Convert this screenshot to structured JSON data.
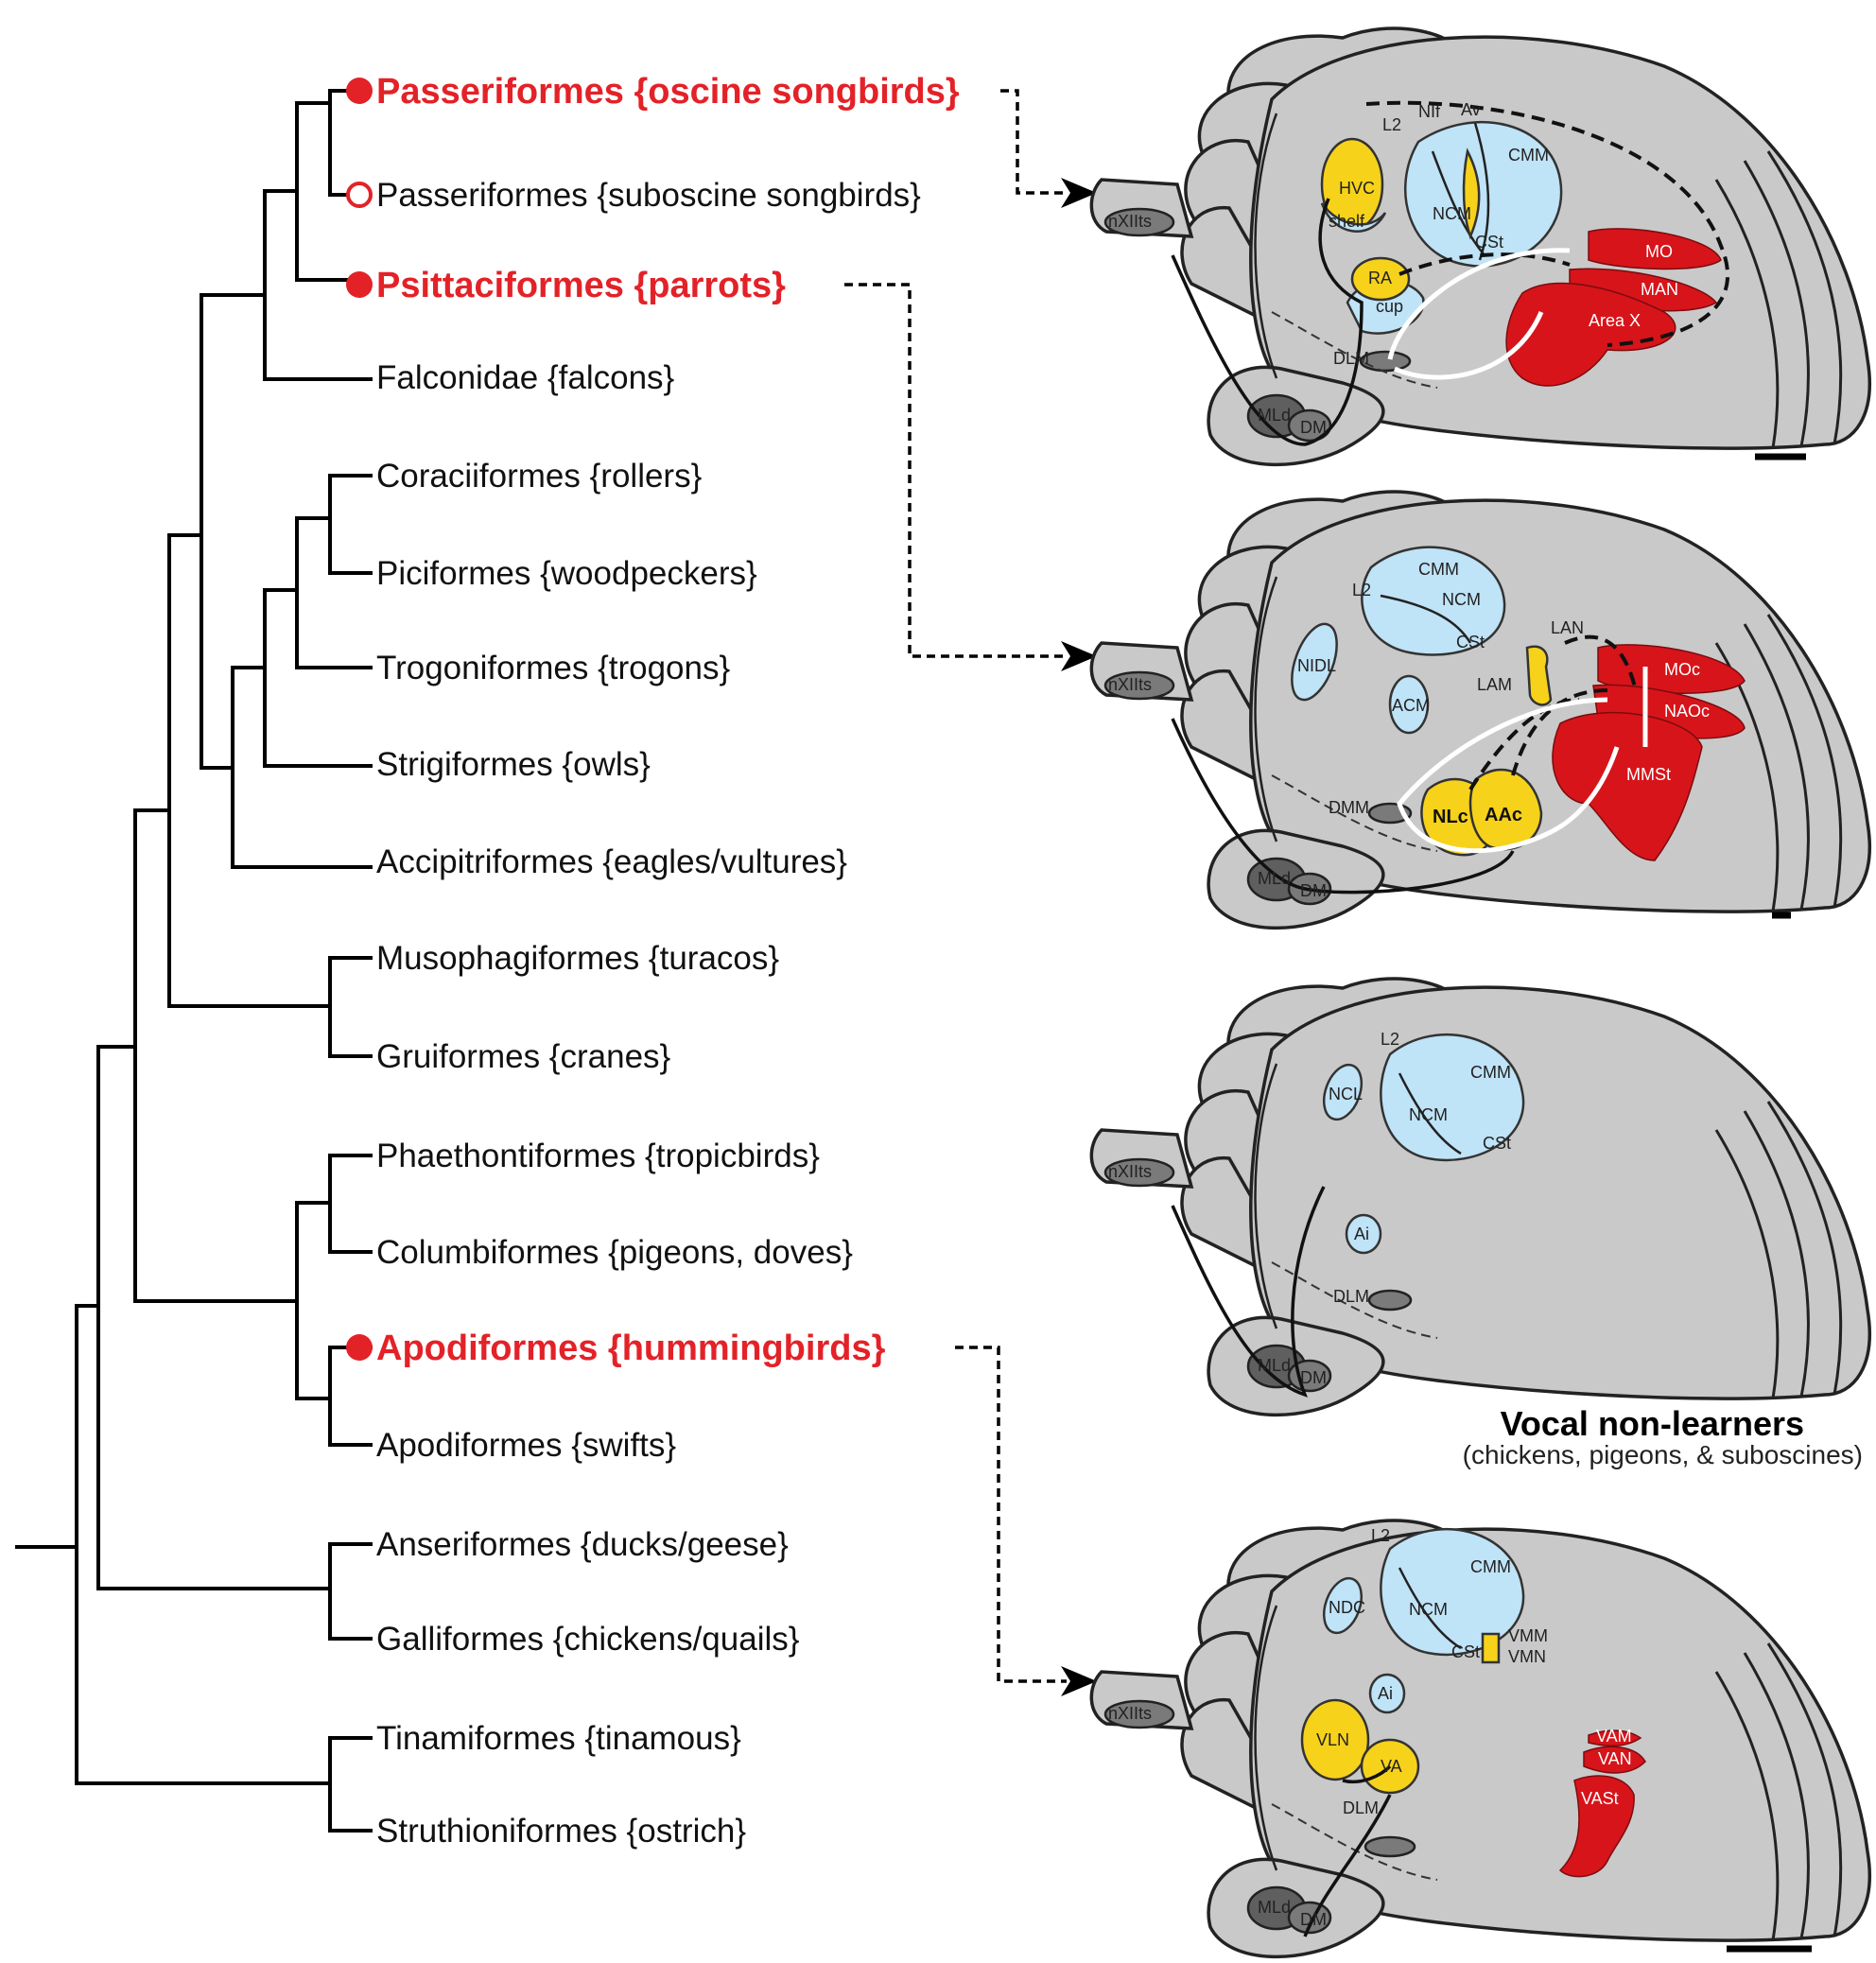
{
  "taxa": [
    {
      "label": "Passeriformes {oscine songbirds}",
      "vocal_learner": true,
      "marker": "filled"
    },
    {
      "label": "Passeriformes {suboscine songbirds}",
      "vocal_learner": false,
      "marker": "open"
    },
    {
      "label": "Psittaciformes {parrots}",
      "vocal_learner": true,
      "marker": "filled"
    },
    {
      "label": "Falconidae {falcons}",
      "vocal_learner": false,
      "marker": "none"
    },
    {
      "label": "Coraciiformes {rollers}",
      "vocal_learner": false,
      "marker": "none"
    },
    {
      "label": "Piciformes {woodpeckers}",
      "vocal_learner": false,
      "marker": "none"
    },
    {
      "label": "Trogoniformes {trogons}",
      "vocal_learner": false,
      "marker": "none"
    },
    {
      "label": "Strigiformes {owls}",
      "vocal_learner": false,
      "marker": "none"
    },
    {
      "label": "Accipitriformes {eagles/vultures}",
      "vocal_learner": false,
      "marker": "none"
    },
    {
      "label": "Musophagiformes {turacos}",
      "vocal_learner": false,
      "marker": "none"
    },
    {
      "label": "Gruiformes {cranes}",
      "vocal_learner": false,
      "marker": "none"
    },
    {
      "label": "Phaethontiformes {tropicbirds}",
      "vocal_learner": false,
      "marker": "none"
    },
    {
      "label": "Columbiformes {pigeons, doves}",
      "vocal_learner": false,
      "marker": "none"
    },
    {
      "label": "Apodiformes {hummingbirds}",
      "vocal_learner": true,
      "marker": "filled"
    },
    {
      "label": "Apodiformes {swifts}",
      "vocal_learner": false,
      "marker": "none"
    },
    {
      "label": "Anseriformes {ducks/geese}",
      "vocal_learner": false,
      "marker": "none"
    },
    {
      "label": "Galliformes {chickens/quails}",
      "vocal_learner": false,
      "marker": "none"
    },
    {
      "label": "Tinamiformes {tinamous}",
      "vocal_learner": false,
      "marker": "none"
    },
    {
      "label": "Struthioniformes {ostrich}",
      "vocal_learner": false,
      "marker": "none"
    }
  ],
  "colors": {
    "learner": "#e32228",
    "brain": "#c9c9c9",
    "auditory": "#bfe3f7",
    "posterior_vocal": "#f7d21b",
    "anterior_vocal": "#d7141a",
    "brainstem": "#7a7a7a"
  },
  "songbird_brain": {
    "labels": {
      "hvc": "HVC",
      "shelf": "shelf",
      "l2": "L2",
      "nif": "NIf",
      "av": "Av",
      "cmm": "CMM",
      "ncm": "NCM",
      "cst": "CSt",
      "ra": "RA",
      "cup": "cup",
      "mo": "MO",
      "man": "MAN",
      "areax": "Area X",
      "dlm": "DLM",
      "mld": "MLd",
      "dm": "DM",
      "nxii": "nXIIts"
    }
  },
  "parrot_brain": {
    "labels": {
      "cmm": "CMM",
      "ncm": "NCM",
      "l2": "L2",
      "nidl": "NIDL",
      "cst": "CSt",
      "lan": "LAN",
      "lam": "LAM",
      "acm": "ACM",
      "moc": "MOc",
      "naoc": "NAOc",
      "mmst": "MMSt",
      "dmm": "DMM",
      "nlc": "NLc",
      "aac": "AAc",
      "mld": "MLd",
      "dm": "DM",
      "nxii": "nXIIts"
    }
  },
  "nonlearner_brain": {
    "labels": {
      "ncl": "NCL",
      "l2": "L2",
      "cmm": "CMM",
      "ncm": "NCM",
      "cst": "CSt",
      "ai": "Ai",
      "dlm": "DLM",
      "mld": "MLd",
      "dm": "DM",
      "nxii": "nXIIts"
    },
    "caption_title": "Vocal non-learners",
    "caption_sub": "(chickens, pigeons, & suboscines)"
  },
  "hummingbird_brain": {
    "labels": {
      "l2": "L2",
      "cmm": "CMM",
      "ndc": "NDC",
      "ncm": "NCM",
      "cst": "CSt",
      "vmm": "VMM",
      "vmn": "VMN",
      "ai": "Ai",
      "vln": "VLN",
      "va": "VA",
      "dlm": "DLM",
      "vam": "VAM",
      "van": "VAN",
      "vast": "VASt",
      "mld": "MLd",
      "dm": "DM",
      "nxii": "nXIIts"
    }
  }
}
